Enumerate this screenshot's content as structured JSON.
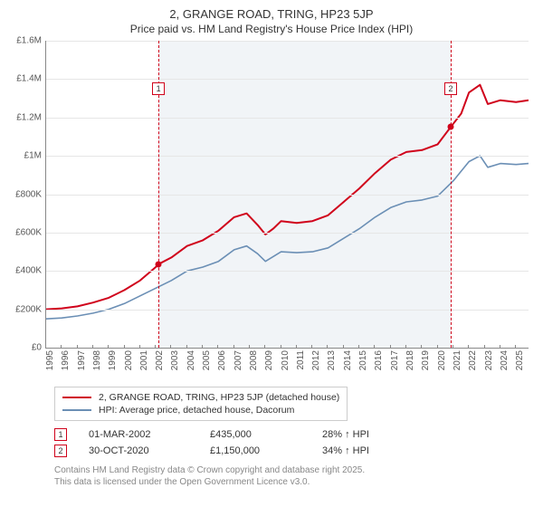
{
  "title_line1": "2, GRANGE ROAD, TRING, HP23 5JP",
  "title_line2": "Price paid vs. HM Land Registry's House Price Index (HPI)",
  "chart": {
    "type": "line",
    "background_color": "#ffffff",
    "grid_color": "#e6e6e6",
    "axis_color": "#888888",
    "shade_color": "rgba(200,210,225,0.25)",
    "ylim": [
      0,
      1600000
    ],
    "ytick_step": 200000,
    "ytick_labels": [
      "£0",
      "£200K",
      "£400K",
      "£600K",
      "£800K",
      "£1M",
      "£1.2M",
      "£1.4M",
      "£1.6M"
    ],
    "x_start_year": 1995,
    "x_end_year": 2025.8,
    "xtick_years": [
      1995,
      1996,
      1997,
      1998,
      1999,
      2000,
      2001,
      2002,
      2003,
      2004,
      2005,
      2006,
      2007,
      2008,
      2009,
      2010,
      2011,
      2012,
      2013,
      2014,
      2015,
      2016,
      2017,
      2018,
      2019,
      2020,
      2021,
      2022,
      2023,
      2024,
      2025
    ],
    "shade_start_year": 2002.17,
    "shade_end_year": 2020.83,
    "series": [
      {
        "name": "2, GRANGE ROAD, TRING, HP23 5JP (detached house)",
        "color": "#d0021b",
        "line_width": 2,
        "data": [
          [
            1995.0,
            200000
          ],
          [
            1996.0,
            205000
          ],
          [
            1997.0,
            215000
          ],
          [
            1998.0,
            235000
          ],
          [
            1999.0,
            260000
          ],
          [
            2000.0,
            300000
          ],
          [
            2001.0,
            350000
          ],
          [
            2002.0,
            420000
          ],
          [
            2002.17,
            435000
          ],
          [
            2003.0,
            470000
          ],
          [
            2004.0,
            530000
          ],
          [
            2005.0,
            560000
          ],
          [
            2006.0,
            610000
          ],
          [
            2007.0,
            680000
          ],
          [
            2007.8,
            700000
          ],
          [
            2008.5,
            640000
          ],
          [
            2009.0,
            590000
          ],
          [
            2009.5,
            620000
          ],
          [
            2010.0,
            660000
          ],
          [
            2011.0,
            650000
          ],
          [
            2012.0,
            660000
          ],
          [
            2013.0,
            690000
          ],
          [
            2014.0,
            760000
          ],
          [
            2015.0,
            830000
          ],
          [
            2016.0,
            910000
          ],
          [
            2017.0,
            980000
          ],
          [
            2018.0,
            1020000
          ],
          [
            2019.0,
            1030000
          ],
          [
            2020.0,
            1060000
          ],
          [
            2020.83,
            1150000
          ],
          [
            2021.5,
            1220000
          ],
          [
            2022.0,
            1330000
          ],
          [
            2022.7,
            1370000
          ],
          [
            2023.2,
            1270000
          ],
          [
            2024.0,
            1290000
          ],
          [
            2025.0,
            1280000
          ],
          [
            2025.8,
            1290000
          ]
        ]
      },
      {
        "name": "HPI: Average price, detached house, Dacorum",
        "color": "#6b8fb5",
        "line_width": 1.6,
        "data": [
          [
            1995.0,
            150000
          ],
          [
            1996.0,
            155000
          ],
          [
            1997.0,
            165000
          ],
          [
            1998.0,
            180000
          ],
          [
            1999.0,
            200000
          ],
          [
            2000.0,
            230000
          ],
          [
            2001.0,
            270000
          ],
          [
            2002.0,
            310000
          ],
          [
            2003.0,
            350000
          ],
          [
            2004.0,
            400000
          ],
          [
            2005.0,
            420000
          ],
          [
            2006.0,
            450000
          ],
          [
            2007.0,
            510000
          ],
          [
            2007.8,
            530000
          ],
          [
            2008.5,
            490000
          ],
          [
            2009.0,
            450000
          ],
          [
            2010.0,
            500000
          ],
          [
            2011.0,
            495000
          ],
          [
            2012.0,
            500000
          ],
          [
            2013.0,
            520000
          ],
          [
            2014.0,
            570000
          ],
          [
            2015.0,
            620000
          ],
          [
            2016.0,
            680000
          ],
          [
            2017.0,
            730000
          ],
          [
            2018.0,
            760000
          ],
          [
            2019.0,
            770000
          ],
          [
            2020.0,
            790000
          ],
          [
            2021.0,
            870000
          ],
          [
            2022.0,
            970000
          ],
          [
            2022.7,
            1000000
          ],
          [
            2023.2,
            940000
          ],
          [
            2024.0,
            960000
          ],
          [
            2025.0,
            955000
          ],
          [
            2025.8,
            960000
          ]
        ]
      }
    ],
    "markers": [
      {
        "num": "1",
        "year": 2002.17,
        "price": 435000,
        "vdash_color": "#d0021b",
        "box_color": "#d0021b"
      },
      {
        "num": "2",
        "year": 2020.83,
        "price": 1150000,
        "vdash_color": "#d0021b",
        "box_color": "#d0021b"
      }
    ]
  },
  "legend": {
    "items": [
      {
        "color": "#d0021b",
        "label": "2, GRANGE ROAD, TRING, HP23 5JP (detached house)"
      },
      {
        "color": "#6b8fb5",
        "label": "HPI: Average price, detached house, Dacorum"
      }
    ]
  },
  "transactions": [
    {
      "num": "1",
      "box_color": "#d0021b",
      "date": "01-MAR-2002",
      "price": "£435,000",
      "delta": "28% ↑ HPI"
    },
    {
      "num": "2",
      "box_color": "#d0021b",
      "date": "30-OCT-2020",
      "price": "£1,150,000",
      "delta": "34% ↑ HPI"
    }
  ],
  "footer_line1": "Contains HM Land Registry data © Crown copyright and database right 2025.",
  "footer_line2": "This data is licensed under the Open Government Licence v3.0."
}
